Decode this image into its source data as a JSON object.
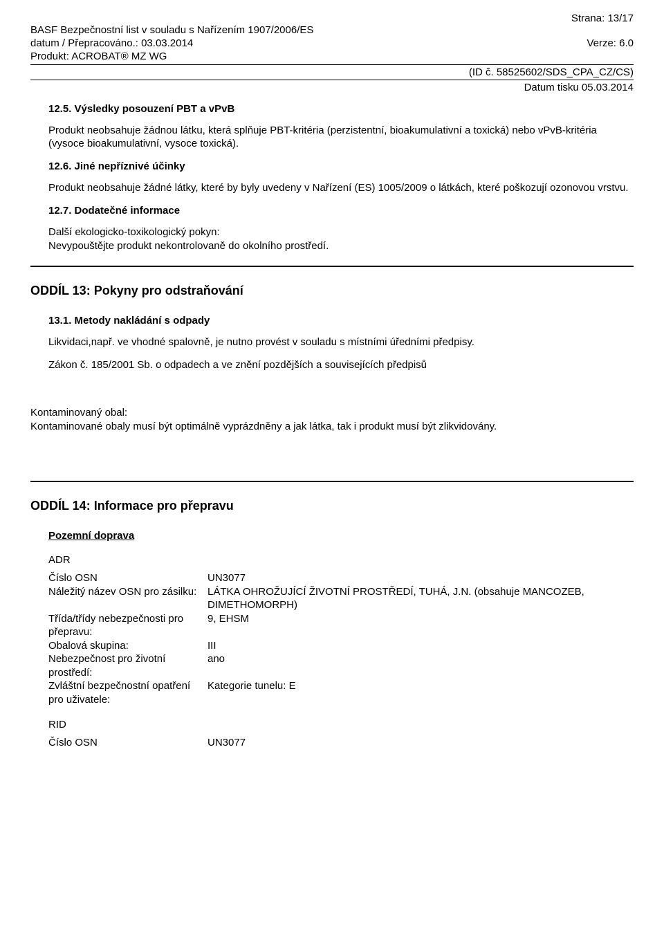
{
  "page_header": {
    "page_no": "Strana: 13/17",
    "line1": "BASF Bezpečnostní list v souladu s Nařízením 1907/2006/ES",
    "line2_left": "datum / Přepracováno.: 03.03.2014",
    "line2_right": "Verze: 6.0",
    "line3": "Produkt: ACROBAT® MZ WG",
    "id_line": "(ID č. 58525602/SDS_CPA_CZ/CS)",
    "print_date": "Datum tisku 05.03.2014"
  },
  "s12_5": {
    "heading": "12.5. Výsledky posouzení PBT a vPvB",
    "para": "Produkt neobsahuje žádnou látku, která splňuje PBT-kritéria (perzistentní, bioakumulativní a toxická) nebo vPvB-kritéria (vysoce bioakumulativní, vysoce toxická)."
  },
  "s12_6": {
    "heading": "12.6. Jiné nepříznivé účinky",
    "para": "Produkt neobsahuje žádné látky, které by byly uvedeny v Nařízení (ES) 1005/2009 o látkách, které poškozují ozonovou vrstvu."
  },
  "s12_7": {
    "heading": "12.7. Dodatečné informace",
    "line1": "Další ekologicko-toxikologický pokyn:",
    "line2": "Nevypouštějte produkt nekontrolovaně do okolního prostředí."
  },
  "s13": {
    "heading": "ODDÍL 13: Pokyny pro odstraňování",
    "sub_heading": "13.1. Metody nakládání s odpady",
    "para1": "Likvidaci,např. ve vhodné spalovně, je nutno provést v souladu s místními úředními předpisy.",
    "para2": "Zákon č. 185/2001 Sb. o odpadech a ve znění pozdějších a souvisejících předpisů",
    "kont_label": "Kontaminovaný obal:",
    "kont_para": "Kontaminované obaly musí být optimálně vyprázdněny a jak látka, tak i produkt musí být zlikvidovány."
  },
  "s14": {
    "heading": "ODDÍL 14: Informace pro přepravu",
    "subsection": "Pozemní doprava",
    "adr_label": "ADR",
    "adr": {
      "rows": [
        {
          "k": "Číslo OSN",
          "v": "UN3077"
        },
        {
          "k": "Náležitý název OSN pro zásilku:",
          "v": "LÁTKA OHROŽUJÍCÍ  ŽIVOTNÍ  PROSTŘEDÍ, TUHÁ, J.N. (obsahuje MANCOZEB, DIMETHOMORPH)"
        },
        {
          "k": "Třída/třídy nebezpečnosti pro přepravu:",
          "v": "9, EHSM"
        },
        {
          "k": "Obalová skupina:",
          "v": "III"
        },
        {
          "k": "Nebezpečnost pro životní prostředí:",
          "v": "ano"
        },
        {
          "k": "Zvláštní bezpečnostní opatření pro uživatele:",
          "v": "Kategorie tunelu: E"
        }
      ]
    },
    "rid_label": "RID",
    "rid": {
      "rows": [
        {
          "k": "Číslo OSN",
          "v": "UN3077"
        }
      ]
    }
  }
}
